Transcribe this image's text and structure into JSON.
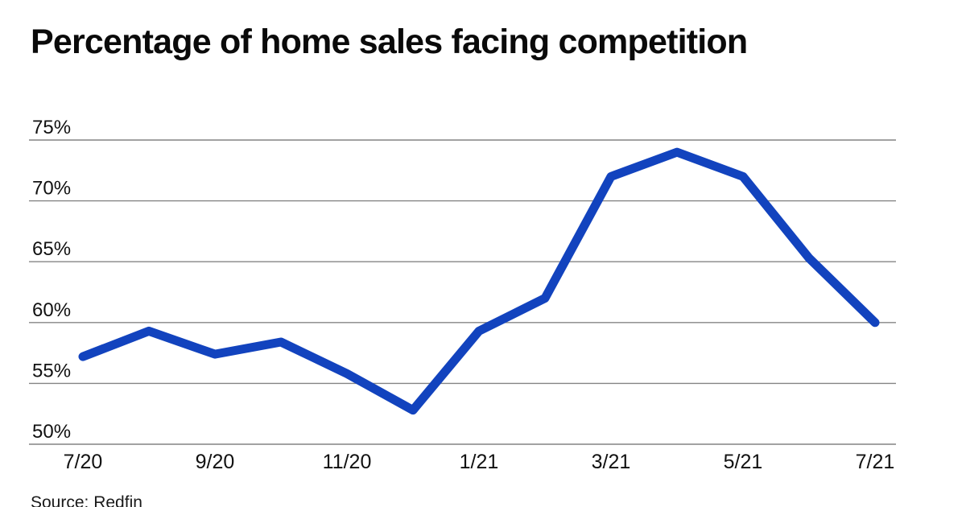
{
  "page": {
    "title": "Percentage of home sales facing competition",
    "source": "Source: Redfin"
  },
  "colors": {
    "line": "#1243BE",
    "grid": "#848484",
    "axis_text": "#111111",
    "title_text": "#0a0a0a",
    "background": "#ffffff"
  },
  "chart_data": {
    "type": "line",
    "title": "Percentage of home sales facing competition",
    "x": [
      "7/20",
      "8/20",
      "9/20",
      "10/20",
      "11/20",
      "12/20",
      "1/21",
      "2/21",
      "3/21",
      "4/21",
      "5/21",
      "6/21",
      "7/21"
    ],
    "values": [
      57.2,
      59.3,
      57.4,
      58.4,
      55.8,
      52.8,
      59.3,
      62.0,
      72.0,
      74.0,
      72.0,
      65.3,
      60.0
    ],
    "series_name": "Percentage of home sales facing competition",
    "x_tick_labels": [
      "7/20",
      "9/20",
      "11/20",
      "1/21",
      "3/21",
      "5/21",
      "7/21"
    ],
    "y_ticks": [
      50,
      55,
      60,
      65,
      70,
      75
    ],
    "y_tick_suffix": "%",
    "ylim": [
      50,
      76.5
    ],
    "xlabel": "",
    "ylabel": "",
    "grid": "horizontal",
    "legend": "none",
    "source": "Source: Redfin"
  }
}
